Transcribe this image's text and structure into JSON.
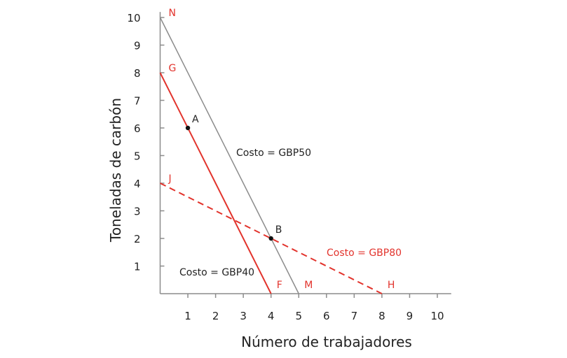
{
  "chart_data": {
    "type": "line",
    "title": "",
    "xlabel": "Número de trabajadores",
    "ylabel": "Toneladas de carbón",
    "xlim": [
      0,
      10
    ],
    "ylim": [
      0,
      10
    ],
    "xticks": [
      "1",
      "2",
      "3",
      "4",
      "5",
      "6",
      "7",
      "8",
      "9",
      "10"
    ],
    "yticks": [
      "1",
      "2",
      "3",
      "4",
      "5",
      "6",
      "7",
      "8",
      "9",
      "10"
    ],
    "grid": false,
    "colors": {
      "red": "#e2332c",
      "gray": "#8c8c8c",
      "axis": "#8c8c8c",
      "text": "#222222"
    },
    "series": [
      {
        "name": "Costo = GBP50",
        "points": [
          [
            0,
            10
          ],
          [
            5,
            0
          ]
        ],
        "color": "#8c8c8c",
        "dashed": false,
        "start_label": "N",
        "end_label": "M"
      },
      {
        "name": "Costo = GBP40",
        "points": [
          [
            0,
            8
          ],
          [
            4,
            0
          ]
        ],
        "color": "#e2332c",
        "dashed": false,
        "start_label": "G",
        "end_label": "F"
      },
      {
        "name": "Costo = GBP80",
        "points": [
          [
            0,
            4
          ],
          [
            8,
            0
          ]
        ],
        "color": "#e2332c",
        "dashed": true,
        "start_label": "J",
        "end_label": "H"
      }
    ],
    "points": [
      {
        "label": "A",
        "x": 1,
        "y": 6
      },
      {
        "label": "B",
        "x": 4,
        "y": 2
      }
    ]
  }
}
